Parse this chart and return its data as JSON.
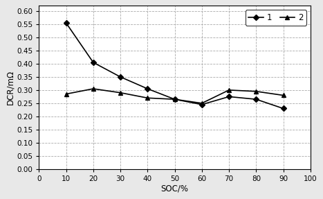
{
  "series1": {
    "x": [
      10,
      20,
      30,
      40,
      50,
      60,
      70,
      80,
      90
    ],
    "y": [
      0.555,
      0.405,
      0.35,
      0.305,
      0.265,
      0.245,
      0.275,
      0.265,
      0.23
    ],
    "label": "1",
    "marker": "D",
    "color": "#000000",
    "markersize": 4,
    "linewidth": 1.2
  },
  "series2": {
    "x": [
      10,
      20,
      30,
      40,
      50,
      60,
      70,
      80,
      90
    ],
    "y": [
      0.285,
      0.305,
      0.29,
      0.27,
      0.265,
      0.25,
      0.3,
      0.295,
      0.28
    ],
    "label": "2",
    "marker": "^",
    "color": "#000000",
    "markersize": 5,
    "linewidth": 1.2
  },
  "xlabel": "SOC/%",
  "ylabel": "DCR/mΩ",
  "xlim": [
    0,
    100
  ],
  "ylim": [
    0.0,
    0.62
  ],
  "xticks": [
    0,
    10,
    20,
    30,
    40,
    50,
    60,
    70,
    80,
    90,
    100
  ],
  "yticks": [
    0.0,
    0.05,
    0.1,
    0.15,
    0.2,
    0.25,
    0.3,
    0.35,
    0.4,
    0.45,
    0.5,
    0.55,
    0.6
  ],
  "grid_color": "#aaaaaa",
  "grid_linestyle": "--",
  "background_color": "#ffffff",
  "outer_background": "#e8e8e8",
  "border_color": "#000000",
  "legend_loc": "upper right",
  "legend_ncol": 2,
  "fig_width": 4.67,
  "fig_height": 2.87,
  "dpi": 100
}
